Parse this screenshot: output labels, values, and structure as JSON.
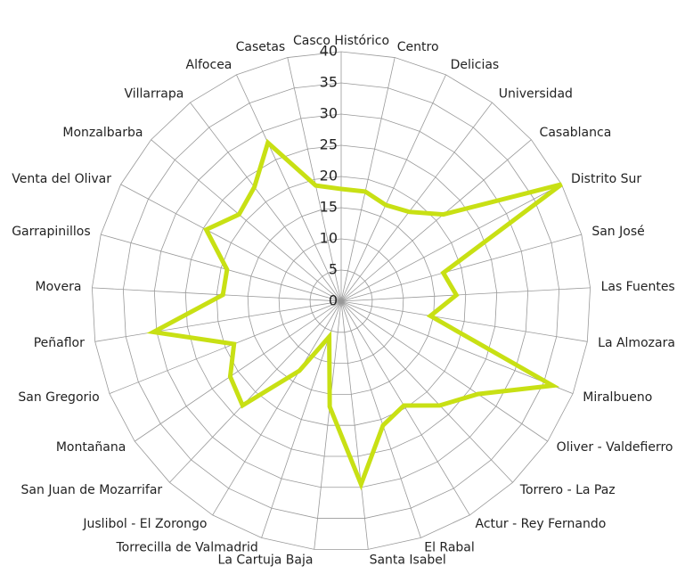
{
  "chart_data": {
    "type": "radar",
    "categories": [
      "Casco Histórico",
      "Centro",
      "Delicias",
      "Universidad",
      "Casablanca",
      "Distrito Sur",
      "San José",
      "Las Fuentes",
      "La Almozara",
      "Miralbueno",
      "Oliver - Valdefierro",
      "Torrero - La Paz",
      "Actur - Rey Fernando",
      "El Rabal",
      "Santa Isabel",
      "La Cartuja Baja",
      "Torrecilla de Valmadrid",
      "Juslibol - El Zorongo",
      "San Juan de Mozarrifar",
      "Montañana",
      "San Gregorio",
      "Peñaflor",
      "Movera",
      "Garrapinillos",
      "Venta del Olivar",
      "Monzalbarba",
      "Villarrapa",
      "Alfocea",
      "Casetas"
    ],
    "values": [
      18,
      18,
      17,
      18,
      21.5,
      40,
      17,
      18.5,
      14.5,
      36.5,
      26.5,
      23,
      19.5,
      21,
      29.5,
      17,
      6,
      13,
      23,
      21.5,
      18.5,
      30.5,
      19,
      19,
      24.5,
      21.5,
      23,
      28,
      19
    ],
    "color": "#c8e014",
    "ylim": [
      0,
      40
    ],
    "yticks": [
      0,
      5,
      10,
      15,
      20,
      25,
      30,
      35,
      40
    ],
    "grid": true
  }
}
